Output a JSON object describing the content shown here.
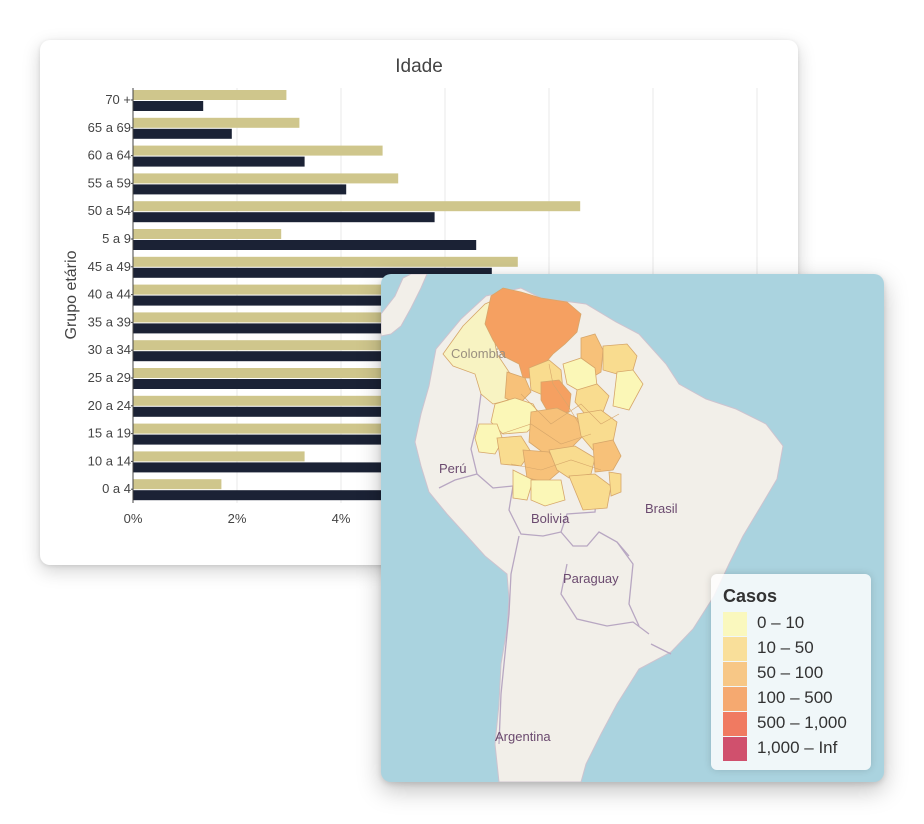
{
  "chart_data": {
    "type": "bar",
    "orientation": "horizontal",
    "title": "Idade",
    "ylabel": "Grupo etário",
    "xlabel": "",
    "categories": [
      "0 a 4",
      "10 a 14",
      "15 a 19",
      "20 a 24",
      "25 a 29",
      "30 a 34",
      "35 a 39",
      "40 a 44",
      "45 a 49",
      "5 a 9",
      "50 a 54",
      "55 a 59",
      "60 a 64",
      "65 a 69",
      "70 +"
    ],
    "x_ticks": [
      "0%",
      "2%",
      "4%"
    ],
    "xlim": [
      0,
      12
    ],
    "grid": true,
    "series": [
      {
        "color": "#cfc68c",
        "values": [
          1.7,
          3.3,
          4.9,
          5.6,
          6.1,
          6.6,
          7.2,
          7.9,
          7.4,
          2.85,
          8.6,
          5.1,
          4.8,
          3.2,
          2.95
        ]
      },
      {
        "color": "#1b2235",
        "values": [
          5.6,
          6.9,
          7.3,
          7.6,
          7.9,
          8.1,
          8.1,
          7.6,
          6.9,
          6.6,
          5.8,
          4.1,
          3.3,
          1.9,
          1.35
        ]
      }
    ]
  },
  "map": {
    "labels": {
      "colombia": "Colombia",
      "peru": "Perú",
      "bolivia": "Bolivia",
      "brasil": "Brasil",
      "paraguay": "Paraguay",
      "argentina": "Argentina"
    },
    "legend": {
      "title": "Casos",
      "items": [
        {
          "label": "0 – 10",
          "color": "#fbf7b7"
        },
        {
          "label": "10 – 50",
          "color": "#f9dc8f"
        },
        {
          "label": "50 – 100",
          "color": "#f7c179"
        },
        {
          "label": "100 – 500",
          "color": "#f5a061"
        },
        {
          "label": "500 – 1,000",
          "color": "#ef6b50"
        },
        {
          "label": "1,000 – Inf",
          "color": "#cc3d5d"
        }
      ]
    }
  }
}
